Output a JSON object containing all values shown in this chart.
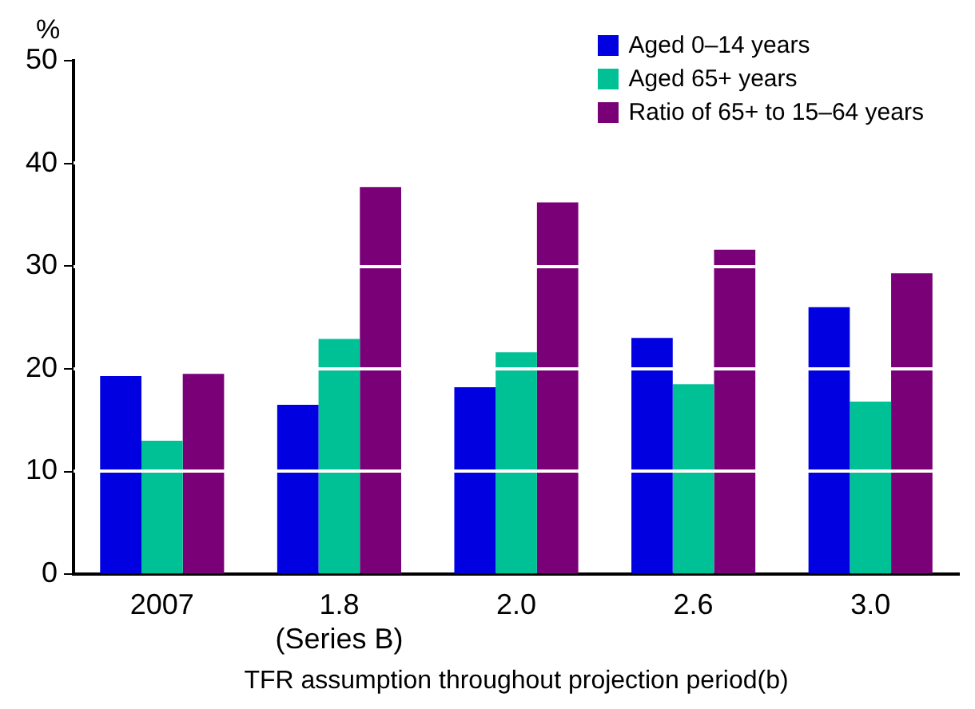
{
  "chart_data": {
    "type": "bar",
    "ylabel": "%",
    "xlabel": "TFR assumption throughout projection period(b)",
    "categories": [
      "2007",
      "1.8\n(Series B)",
      "2.0",
      "2.6",
      "3.0"
    ],
    "series": [
      {
        "name": "Aged 0–14 years",
        "color": "#0000e0",
        "values": [
          19.3,
          16.5,
          18.2,
          23.0,
          26.0
        ]
      },
      {
        "name": "Aged 65+ years",
        "color": "#00c096",
        "values": [
          13.0,
          22.9,
          21.6,
          18.5,
          16.8
        ]
      },
      {
        "name": "Ratio of 65+ to 15–64 years",
        "color": "#7a0078",
        "values": [
          19.5,
          37.7,
          36.2,
          31.6,
          29.3
        ]
      }
    ],
    "ylim": [
      0,
      50
    ],
    "yticks": [
      0,
      10,
      20,
      30,
      40,
      50
    ],
    "grid": "y",
    "legend": "top right"
  }
}
